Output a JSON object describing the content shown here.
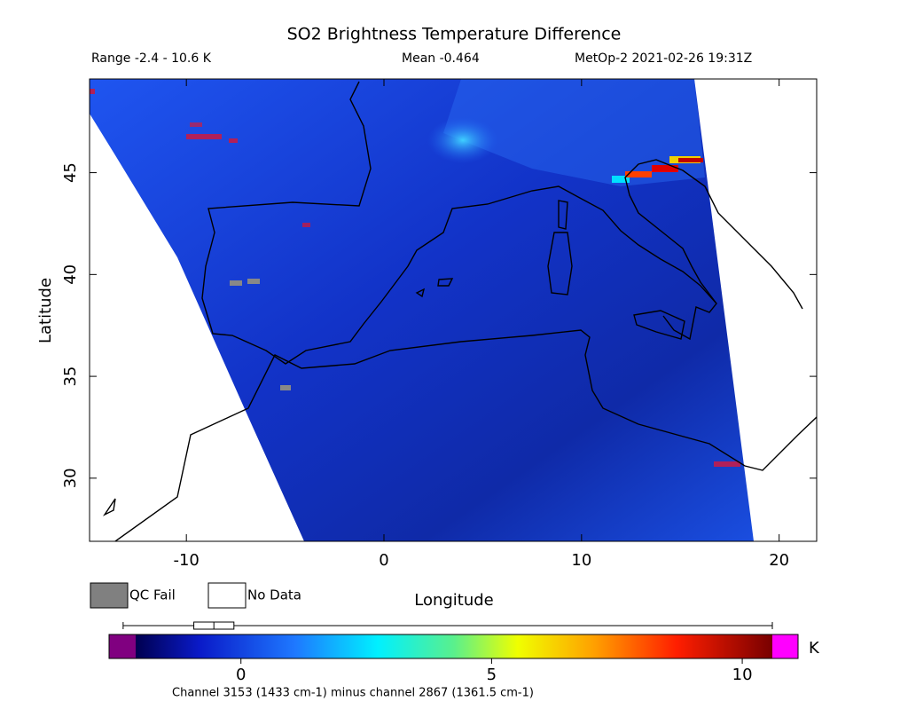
{
  "chart_data": {
    "type": "map",
    "title": "SO2 Brightness Temperature Difference",
    "range_text": "Range -2.4 - 10.6 K",
    "mean_text": "Mean -0.464",
    "satellite_text": "MetOp-2 2021-02-26 19:31Z",
    "x_label": "Longitude",
    "y_label": "Latitude",
    "xlim": [
      -14.9,
      21.9
    ],
    "xticks": [
      -10,
      0,
      10,
      20
    ],
    "ylim": [
      26.9,
      49.6
    ],
    "yticks": [
      30,
      35,
      40,
      45
    ],
    "legend": [
      "QC Fail",
      "No Data"
    ],
    "colorbar": {
      "clim": [
        -2.1,
        10.6
      ],
      "ticks": [
        0,
        5,
        10
      ],
      "unit": "K",
      "distribution": {
        "min": -2.35,
        "q1": -0.94,
        "median": -0.54,
        "q3": -0.14,
        "max": 10.6
      }
    },
    "footnote": "Channel 3153 (1433 cm-1) minus channel 2867 (1361.5 cm-1)"
  }
}
